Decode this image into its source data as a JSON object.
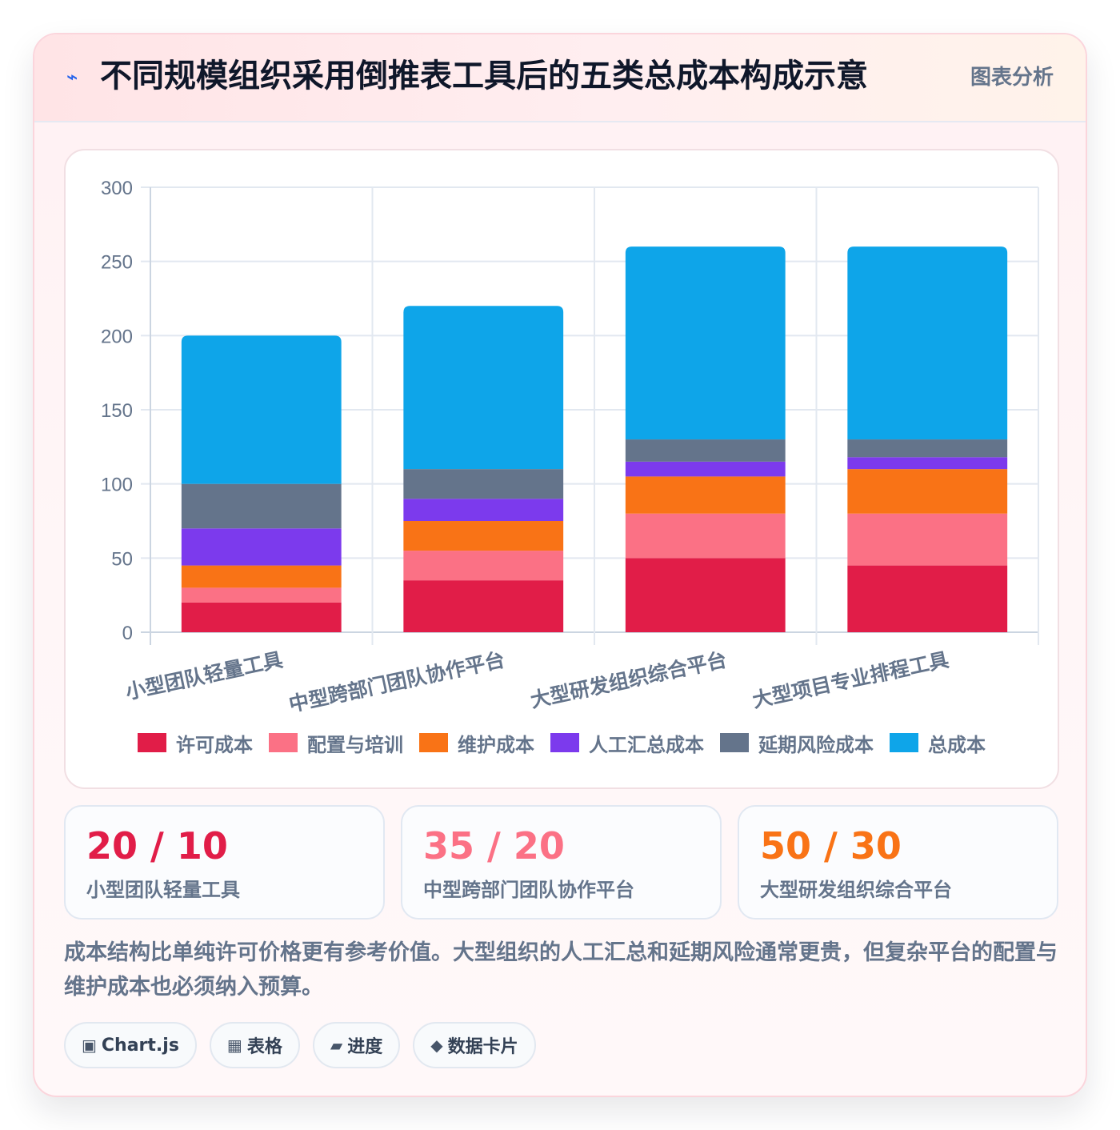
{
  "header": {
    "icon": "lightning-icon",
    "title": "不同规模组织采用倒推表工具后的五类总成本构成示意",
    "tag": "图表分析"
  },
  "chart_data": {
    "type": "bar",
    "stacked": true,
    "categories": [
      "小型团队轻量工具",
      "中型跨部门团队协作平台",
      "大型研发组织综合平台",
      "大型项目专业排程工具"
    ],
    "series": [
      {
        "name": "许可成本",
        "color": "#e11d48",
        "values": [
          20,
          35,
          50,
          45
        ]
      },
      {
        "name": "配置与培训",
        "color": "#fb7185",
        "values": [
          10,
          20,
          30,
          35
        ]
      },
      {
        "name": "维护成本",
        "color": "#f97316",
        "values": [
          15,
          20,
          25,
          30
        ]
      },
      {
        "name": "人工汇总成本",
        "color": "#7c3aed",
        "values": [
          25,
          15,
          10,
          8
        ]
      },
      {
        "name": "延期风险成本",
        "color": "#64748b",
        "values": [
          30,
          20,
          15,
          12
        ]
      },
      {
        "name": "总成本",
        "color": "#0ea5e9",
        "values": [
          100,
          110,
          130,
          130
        ]
      }
    ],
    "ylim": [
      0,
      300
    ],
    "yticks": [
      0,
      50,
      100,
      150,
      200,
      250,
      300
    ],
    "grid": true,
    "legend": "bottom"
  },
  "stats": [
    {
      "value": "20 / 10",
      "label": "小型团队轻量工具",
      "color": "#e11d48"
    },
    {
      "value": "35 / 20",
      "label": "中型跨部门团队协作平台",
      "color": "#fb7185"
    },
    {
      "value": "50 / 30",
      "label": "大型研发组织综合平台",
      "color": "#f97316"
    }
  ],
  "description": "成本结构比单纯许可价格更有参考价值。大型组织的人工汇总和延期风险通常更贵，但复杂平台的配置与维护成本也必须纳入预算。",
  "chips": [
    {
      "icon": "▣",
      "label": "Chart.js"
    },
    {
      "icon": "▦",
      "label": "表格"
    },
    {
      "icon": "▰",
      "label": "进度"
    },
    {
      "icon": "◆",
      "label": "数据卡片"
    }
  ]
}
